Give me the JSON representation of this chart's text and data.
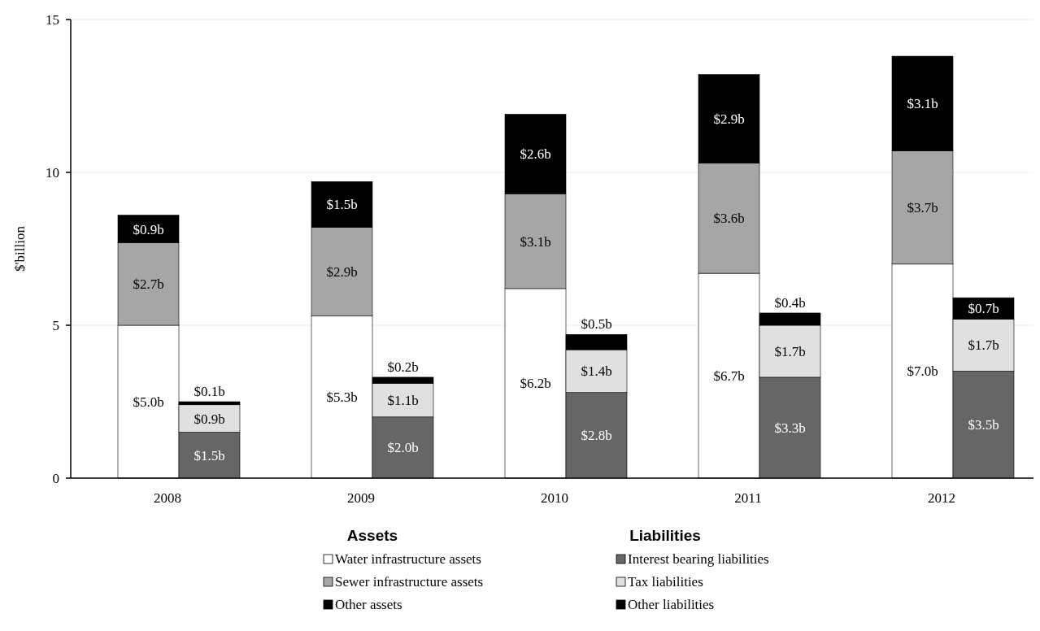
{
  "chart_data": [
    {
      "type": "bar",
      "stacked": true,
      "ylabel": "$'billion",
      "legend_title": "Assets",
      "categories": [
        "2008",
        "2009",
        "2010",
        "2011",
        "2012"
      ],
      "ylim": [
        0,
        15
      ],
      "yticks": [
        0,
        5,
        10,
        15
      ],
      "grid": "y",
      "legend": "bottom",
      "series": [
        {
          "name": "Water infrastructure assets",
          "color": "#ffffff",
          "values": [
            5.0,
            5.3,
            6.2,
            6.7,
            7.0
          ],
          "value_labels": [
            "$5.0b",
            "$5.3b",
            "$6.2b",
            "$6.7b",
            "$7.0b"
          ]
        },
        {
          "name": "Sewer infrastructure assets",
          "color": "#a6a6a6",
          "values": [
            2.7,
            2.9,
            3.1,
            3.6,
            3.7
          ],
          "value_labels": [
            "$2.7b",
            "$2.9b",
            "$3.1b",
            "$3.6b",
            "$3.7b"
          ]
        },
        {
          "name": "Other assets",
          "color": "#000000",
          "values": [
            0.9,
            1.5,
            2.6,
            2.9,
            3.1
          ],
          "value_labels": [
            "$0.9b",
            "$1.5b",
            "$2.6b",
            "$2.9b",
            "$3.1b"
          ]
        }
      ]
    },
    {
      "type": "bar",
      "stacked": true,
      "legend_title": "Liabilities",
      "categories": [
        "2008",
        "2009",
        "2010",
        "2011",
        "2012"
      ],
      "ylim": [
        0,
        15
      ],
      "yticks": [
        0,
        5,
        10,
        15
      ],
      "tick_labels": false,
      "legend": "bottom",
      "series": [
        {
          "name": "Interest bearing liabilities",
          "color": "#666666",
          "values": [
            1.5,
            2.0,
            2.8,
            3.3,
            3.5
          ],
          "value_labels": [
            "$1.5b",
            "$2.0b",
            "$2.8b",
            "$3.3b",
            "$3.5b"
          ]
        },
        {
          "name": "Tax liabilities",
          "color": "#e0e0e0",
          "values": [
            0.9,
            1.1,
            1.4,
            1.7,
            1.7
          ],
          "value_labels": [
            "$0.9b",
            "$1.1b",
            "$1.4b",
            "$1.7b",
            "$1.7b"
          ]
        },
        {
          "name": "Other liabilities",
          "color": "#000000",
          "values": [
            0.1,
            0.2,
            0.5,
            0.4,
            0.7
          ],
          "value_labels": [
            "$0.1b",
            "$0.2b",
            "$0.5b",
            "$0.4b",
            "$0.7b"
          ]
        }
      ]
    }
  ]
}
